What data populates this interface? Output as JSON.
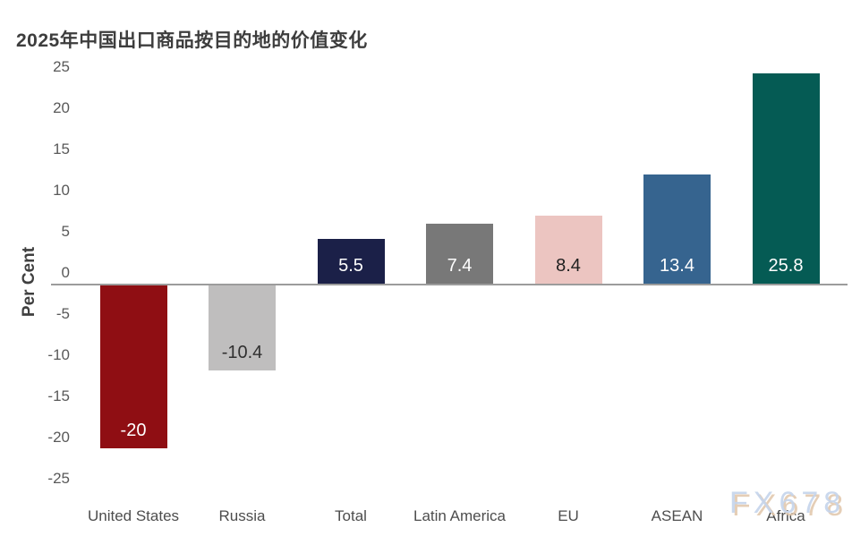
{
  "title": "2025年中国出口商品按目的地的价值变化",
  "watermark": "FX678",
  "chart_data": {
    "type": "bar",
    "title": "2025年中国出口商品按目的地的价值变化",
    "ylabel": "Per Cent",
    "xlabel": "",
    "categories": [
      "United States",
      "Russia",
      "Total",
      "Latin America",
      "EU",
      "ASEAN",
      "Africa"
    ],
    "values": [
      -20,
      -10.4,
      5.5,
      7.4,
      8.4,
      13.4,
      25.8
    ],
    "value_labels": [
      "-20",
      "-10.4",
      "5.5",
      "7.4",
      "8.4",
      "13.4",
      "25.8"
    ],
    "bar_colors": [
      "#8F0E13",
      "#BFBEBE",
      "#1B2048",
      "#787878",
      "#ECC5C1",
      "#36648F",
      "#055B54"
    ],
    "value_label_colors": [
      "#FFFFFF",
      "#303030",
      "#FFFFFF",
      "#FFFFFF",
      "#1F1F1F",
      "#FFFFFF",
      "#FFFFFF"
    ],
    "yticks": [
      25,
      20,
      15,
      10,
      5,
      0,
      -5,
      -10,
      -15,
      -20,
      -25
    ],
    "ylim": [
      -25,
      25
    ],
    "grid": false,
    "legend": false
  },
  "colors": {
    "axis_line": "#9C9C9C",
    "tick_text": "#595959",
    "category_text": "#4D4D4D",
    "title_text": "#3D3D3D",
    "watermark_blue": "#C6D5EC",
    "watermark_tan": "#E2C9AE"
  }
}
